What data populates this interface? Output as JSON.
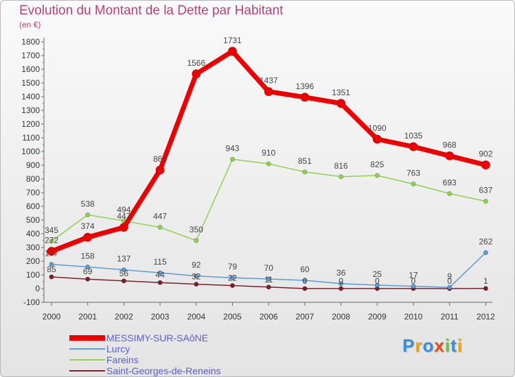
{
  "header": {
    "title": "Evolution du Montant de la Dette par Habitant",
    "unit": "(en €)"
  },
  "chart_data": {
    "type": "line",
    "title": "Evolution du Montant de la Dette par Habitant",
    "subtitle": "(en €)",
    "xlabel": "",
    "ylabel": "",
    "x": [
      "2000",
      "2001",
      "2002",
      "2003",
      "2004",
      "2005",
      "2006",
      "2007",
      "2008",
      "2009",
      "2010",
      "2011",
      "2012"
    ],
    "ylim": [
      -100,
      1800
    ],
    "yticks": [
      -100,
      0,
      100,
      200,
      300,
      400,
      500,
      600,
      700,
      800,
      900,
      1000,
      1100,
      1200,
      1300,
      1400,
      1500,
      1600,
      1700,
      1800
    ],
    "grid": false,
    "legend_position": "bottom-left",
    "series": [
      {
        "name": "MESSIMY-SUR-SAôNE",
        "color": "#ee0000",
        "values": [
          272,
          374,
          447,
          865,
          1566,
          1731,
          1437,
          1396,
          1351,
          1090,
          1035,
          968,
          902
        ],
        "labels": [
          "272",
          "374",
          "447",
          "865",
          "1566",
          "1731",
          "1437",
          "1396",
          "1351",
          "1090",
          "1035",
          "968",
          "902"
        ]
      },
      {
        "name": "Lurcy",
        "color": "#5b9bd5",
        "values": [
          177,
          158,
          137,
          115,
          92,
          79,
          70,
          60,
          36,
          25,
          17,
          9,
          262
        ],
        "labels": [
          "177",
          "158",
          "137",
          "115",
          "92",
          "79",
          "70",
          "60",
          "36",
          "25",
          "17",
          "9",
          "262"
        ]
      },
      {
        "name": "Fareins",
        "color": "#8fd14f",
        "values": [
          345,
          538,
          494,
          447,
          350,
          943,
          910,
          851,
          816,
          825,
          763,
          693,
          637
        ],
        "labels": [
          "345",
          "538",
          "494",
          "447",
          "350",
          "943",
          "910",
          "851",
          "816",
          "825",
          "763",
          "693",
          "637"
        ]
      },
      {
        "name": "Saint-Georges-de-Reneins",
        "color": "#7a1f2a",
        "values": [
          85,
          69,
          56,
          44,
          32,
          22,
          11,
          0,
          0,
          0,
          0,
          0,
          1
        ],
        "labels": [
          "85",
          "69",
          "56",
          "44",
          "32",
          "22",
          "11",
          "0",
          "0",
          "0",
          "0",
          "0",
          "1"
        ]
      }
    ]
  },
  "legend": {
    "items": [
      {
        "label": "MESSIMY-SUR-SAôNE",
        "color": "#ee0000",
        "text_color": "#5b5bd6"
      },
      {
        "label": "Lurcy",
        "color": "#5b9bd5",
        "text_color": "#5b5bd6"
      },
      {
        "label": "Fareins",
        "color": "#8fd14f",
        "text_color": "#5b5bd6"
      },
      {
        "label": "Saint-Georges-de-Reneins",
        "color": "#7a1f2a",
        "text_color": "#5b5bd6"
      }
    ]
  },
  "logo": {
    "letters": [
      "P",
      "r",
      "o",
      "x",
      "i",
      "t",
      "i"
    ],
    "colors": [
      "#3a8fd8",
      "#e8a21a",
      "#3a8fd8",
      "#e84a1a",
      "#6cc04a",
      "#3a8fd8",
      "#e8a21a"
    ]
  }
}
